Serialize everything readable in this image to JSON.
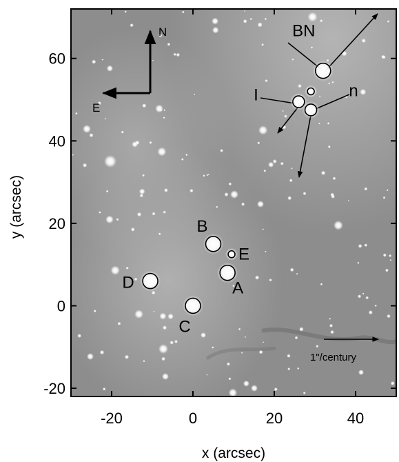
{
  "chart_data": {
    "type": "scatter",
    "xlabel": "x (arcsec)",
    "ylabel": "y (arcsec)",
    "xlim": [
      -30,
      50
    ],
    "ylim": [
      -22,
      72
    ],
    "xticks": [
      -20,
      0,
      20,
      40
    ],
    "yticks": [
      -20,
      0,
      20,
      40,
      60
    ],
    "compass": {
      "north": "N",
      "east": "E"
    },
    "scale_bar": {
      "label": "1\"/century"
    },
    "sources": [
      {
        "name": "BN",
        "x": 32,
        "y": 57,
        "size": "large"
      },
      {
        "name": "I",
        "x": 26,
        "y": 49.5,
        "size": "medium"
      },
      {
        "name": "n",
        "x": 29,
        "y": 47.5,
        "size": "medium"
      },
      {
        "name": "",
        "x": 29,
        "y": 52,
        "size": "small"
      },
      {
        "name": "B",
        "x": 5,
        "y": 15,
        "size": "large"
      },
      {
        "name": "E",
        "x": 9.5,
        "y": 12.5,
        "size": "small"
      },
      {
        "name": "A",
        "x": 8.5,
        "y": 8,
        "size": "large"
      },
      {
        "name": "D",
        "x": -10.5,
        "y": 6,
        "size": "large"
      },
      {
        "name": "C",
        "x": 0,
        "y": 0,
        "size": "large"
      }
    ]
  }
}
